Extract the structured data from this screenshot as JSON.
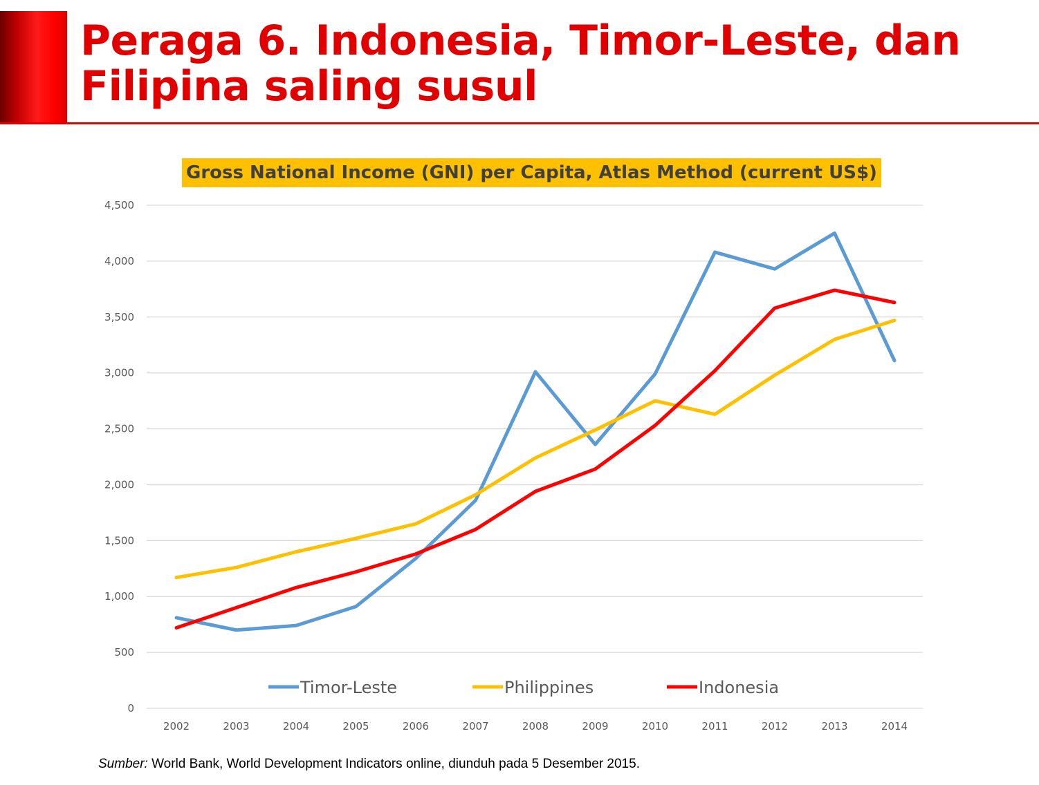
{
  "slide": {
    "title": "Peraga 6. Indonesia, Timor-Leste, dan Filipina saling susul",
    "source_label": "Sumber:",
    "source_text": "World Bank, World Development Indicators online, diunduh pada 5 Desember 2015."
  },
  "colors": {
    "accent": "#e00000",
    "title_highlight": "#ffc000",
    "timor_leste": "#5b9bd5",
    "philippines": "#ffc000",
    "indonesia": "#ff0000"
  },
  "chart_data": {
    "type": "line",
    "title": "Gross National Income (GNI) per Capita, Atlas Method (current US$)",
    "xlabel": "",
    "ylabel": "",
    "categories": [
      "2002",
      "2003",
      "2004",
      "2005",
      "2006",
      "2007",
      "2008",
      "2009",
      "2010",
      "2011",
      "2012",
      "2013",
      "2014"
    ],
    "ylim": [
      0,
      4500
    ],
    "yticks": [
      0,
      500,
      1000,
      1500,
      2000,
      2500,
      3000,
      3500,
      4000,
      4500
    ],
    "ytick_labels": [
      "0",
      "500",
      "1,000",
      "1,500",
      "2,000",
      "2,500",
      "3,000",
      "3,500",
      "4,000",
      "4,500"
    ],
    "grid": true,
    "legend_position": "bottom",
    "series": [
      {
        "name": "Timor-Leste",
        "color": "#5b9bd5",
        "values": [
          810,
          700,
          740,
          910,
          1340,
          1860,
          3010,
          2360,
          2990,
          4080,
          3930,
          4250,
          3110
        ]
      },
      {
        "name": "Philippines",
        "color": "#ffc000",
        "values": [
          1170,
          1260,
          1400,
          1520,
          1650,
          1910,
          2240,
          2490,
          2750,
          2630,
          2980,
          3300,
          3470
        ]
      },
      {
        "name": "Indonesia",
        "color": "#ff0000",
        "values": [
          720,
          900,
          1080,
          1220,
          1380,
          1600,
          1940,
          2140,
          2530,
          3020,
          3580,
          3740,
          3630
        ]
      }
    ]
  }
}
